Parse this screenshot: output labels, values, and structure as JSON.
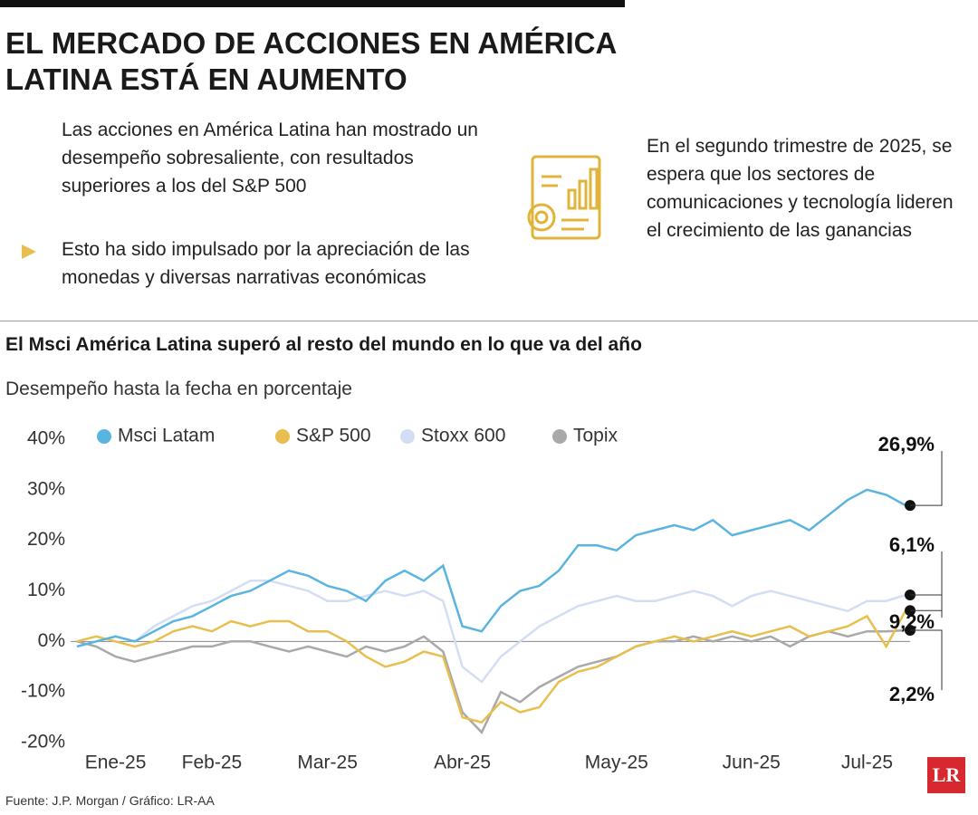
{
  "header": {
    "title": "EL MERCADO DE ACCIONES EN AMÉRICA LATINA ESTÁ EN AUMENTO",
    "points": [
      "Las acciones en América Latina han mostrado un desempeño sobresaliente, con resultados superiores a los del S&P 500",
      "Esto ha sido impulsado por la apreciación de las monedas y diversas narrativas económicas",
      "En el segundo trimestre de 2025, se espera que los sectores de comunicaciones y tecnología lideren el crecimiento de las ganancias"
    ]
  },
  "chart_data": {
    "type": "line",
    "title": "El Msci América Latina superó al resto del mundo en lo que va del año",
    "subtitle": "Desempeño hasta la fecha en porcentaje",
    "categories": [
      null,
      null,
      "Ene-25",
      null,
      null,
      null,
      null,
      "Feb-25",
      null,
      null,
      null,
      null,
      null,
      "Mar-25",
      null,
      null,
      null,
      null,
      null,
      null,
      "Abr-25",
      null,
      null,
      null,
      null,
      null,
      null,
      null,
      "May-25",
      null,
      null,
      null,
      null,
      null,
      null,
      "Jun-25",
      null,
      null,
      null,
      null,
      null,
      "Jul-25",
      null,
      null
    ],
    "series": [
      {
        "name": "Msci Latam",
        "color": "#5ab4e0",
        "values": [
          -1,
          0,
          1,
          0,
          2,
          4,
          5,
          7,
          9,
          10,
          12,
          14,
          13,
          11,
          10,
          8,
          12,
          14,
          12,
          15,
          3,
          2,
          7,
          10,
          11,
          14,
          19,
          19,
          18,
          21,
          22,
          23,
          22,
          24,
          21,
          22,
          23,
          24,
          22,
          25,
          28,
          30,
          29,
          26.9
        ],
        "value_labels": [
          null,
          null,
          null,
          null,
          null,
          null,
          null,
          null,
          null,
          null,
          null,
          null,
          null,
          null,
          null,
          null,
          null,
          null,
          null,
          null,
          null,
          null,
          null,
          null,
          null,
          null,
          null,
          null,
          null,
          null,
          null,
          null,
          null,
          null,
          null,
          null,
          null,
          null,
          null,
          null,
          null,
          null,
          null,
          "26,9%"
        ]
      },
      {
        "name": "S&P 500",
        "color": "#e8bf4e",
        "values": [
          0,
          1,
          0,
          -1,
          0,
          2,
          3,
          2,
          4,
          3,
          4,
          4,
          2,
          2,
          0,
          -3,
          -5,
          -4,
          -2,
          -3,
          -15,
          -16,
          -12,
          -14,
          -13,
          -8,
          -6,
          -5,
          -3,
          -1,
          0,
          1,
          0,
          1,
          2,
          1,
          2,
          3,
          1,
          2,
          3,
          5,
          -1,
          6.1
        ],
        "value_labels": [
          null,
          null,
          null,
          null,
          null,
          null,
          null,
          null,
          null,
          null,
          null,
          null,
          null,
          null,
          null,
          null,
          null,
          null,
          null,
          null,
          null,
          null,
          null,
          null,
          null,
          null,
          null,
          null,
          null,
          null,
          null,
          null,
          null,
          null,
          null,
          null,
          null,
          null,
          null,
          null,
          null,
          null,
          null,
          "6,1%"
        ]
      },
      {
        "name": "Stoxx 600",
        "color": "#d3def2",
        "values": [
          -1,
          0,
          1,
          0,
          3,
          5,
          7,
          8,
          10,
          12,
          12,
          11,
          10,
          8,
          8,
          9,
          10,
          9,
          10,
          8,
          -5,
          -8,
          -3,
          0,
          3,
          5,
          7,
          8,
          9,
          8,
          8,
          9,
          10,
          9,
          7,
          9,
          10,
          9,
          8,
          7,
          6,
          8,
          8,
          9.2
        ],
        "value_labels": [
          null,
          null,
          null,
          null,
          null,
          null,
          null,
          null,
          null,
          null,
          null,
          null,
          null,
          null,
          null,
          null,
          null,
          null,
          null,
          null,
          null,
          null,
          null,
          null,
          null,
          null,
          null,
          null,
          null,
          null,
          null,
          null,
          null,
          null,
          null,
          null,
          null,
          null,
          null,
          null,
          null,
          null,
          null,
          "9,2%"
        ]
      },
      {
        "name": "Topix",
        "color": "#a9a9a9",
        "values": [
          0,
          -1,
          -3,
          -4,
          -3,
          -2,
          -1,
          -1,
          0,
          0,
          -1,
          -2,
          -1,
          -2,
          -3,
          -1,
          -2,
          -1,
          1,
          -2,
          -14,
          -18,
          -10,
          -12,
          -9,
          -7,
          -5,
          -4,
          -3,
          -1,
          0,
          0,
          1,
          0,
          1,
          0,
          1,
          -1,
          1,
          2,
          1,
          2,
          2,
          2.2
        ],
        "value_labels": [
          null,
          null,
          null,
          null,
          null,
          null,
          null,
          null,
          null,
          null,
          null,
          null,
          null,
          null,
          null,
          null,
          null,
          null,
          null,
          null,
          null,
          null,
          null,
          null,
          null,
          null,
          null,
          null,
          null,
          null,
          null,
          null,
          null,
          null,
          null,
          null,
          null,
          null,
          null,
          null,
          null,
          null,
          null,
          "2,2%"
        ]
      }
    ],
    "ylim": [
      -20,
      40
    ],
    "yticks": [
      {
        "value": 40,
        "label": "40%"
      },
      {
        "value": 30,
        "label": "30%"
      },
      {
        "value": 20,
        "label": "20%"
      },
      {
        "value": 10,
        "label": "10%"
      },
      {
        "value": 0,
        "label": "0%"
      },
      {
        "value": -10,
        "label": "-10%"
      },
      {
        "value": -20,
        "label": "-20%"
      }
    ],
    "source": "Fuente: J.P. Morgan / Gráfico: LR-AA",
    "logo": "LR"
  }
}
